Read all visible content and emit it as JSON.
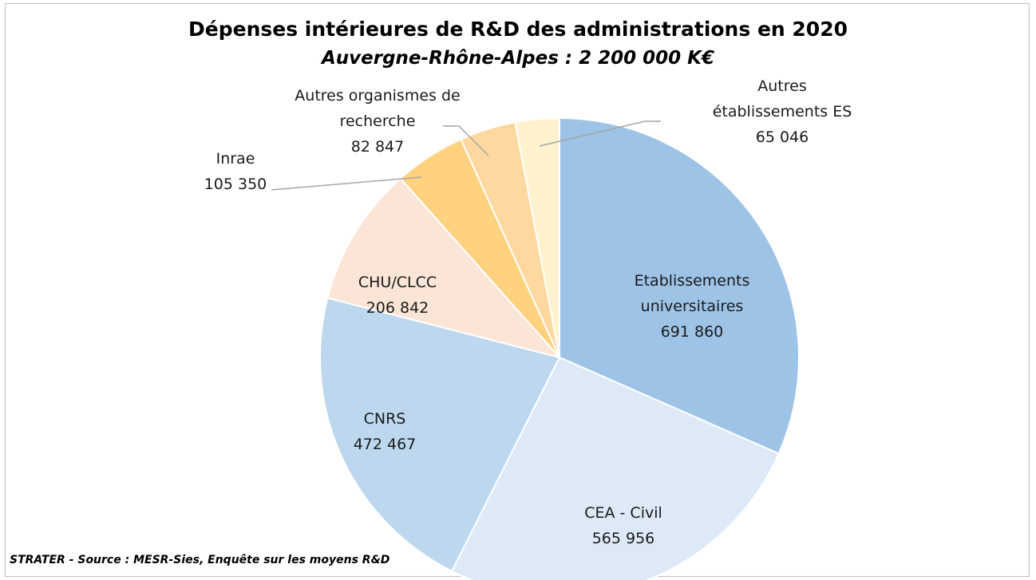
{
  "chart_data": {
    "type": "pie",
    "title": "Dépenses intérieures de R&D des administrations en 2020",
    "subtitle": "Auvergne-Rhône-Alpes : 2 200 000 K€",
    "note": "STRATER - Source : MESR-Sies, Enquête sur les moyens R&D",
    "categories": [
      "Etablissements universitaires",
      "CEA - Civil",
      "CNRS",
      "CHU/CLCC",
      "Inrae",
      "Autres organismes de recherche",
      "Autres établissements ES"
    ],
    "values": [
      691860,
      565956,
      472467,
      206842,
      105350,
      82847,
      65046
    ],
    "value_labels": [
      "691 860",
      "565 956",
      "472 467",
      "206 842",
      "105 350",
      "82 847",
      "65 046"
    ],
    "colors": [
      "#9dc3e6",
      "#dde9f6",
      "#bdd7ee",
      "#fbe5d6",
      "#ffd280",
      "#ffd8a0",
      "#fff2cc"
    ]
  }
}
